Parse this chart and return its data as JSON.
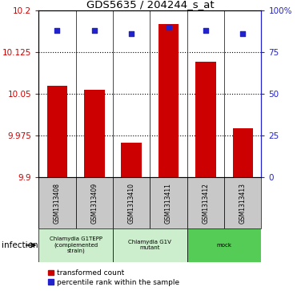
{
  "title": "GDS5635 / 204244_s_at",
  "samples": [
    "GSM1313408",
    "GSM1313409",
    "GSM1313410",
    "GSM1313411",
    "GSM1313412",
    "GSM1313413"
  ],
  "red_values": [
    10.065,
    10.058,
    9.962,
    10.175,
    10.108,
    9.988
  ],
  "blue_values": [
    88,
    88,
    86,
    90,
    88,
    86
  ],
  "ylim_left": [
    9.9,
    10.2
  ],
  "ylim_right": [
    0,
    100
  ],
  "yticks_left": [
    9.9,
    9.975,
    10.05,
    10.125,
    10.2
  ],
  "ytick_labels_left": [
    "9.9",
    "9.975",
    "10.05",
    "10.125",
    "10.2"
  ],
  "yticks_right": [
    0,
    25,
    50,
    75,
    100
  ],
  "ytick_labels_right": [
    "0",
    "25",
    "50",
    "75",
    "100%"
  ],
  "hlines": [
    9.975,
    10.05,
    10.125
  ],
  "groups": [
    {
      "label": "Chlamydia G1TEPP\n(complemented\nstrain)",
      "indices": [
        0,
        1
      ],
      "color": "#cceecc"
    },
    {
      "label": "Chlamydia G1V\nmutant",
      "indices": [
        2,
        3
      ],
      "color": "#cceecc"
    },
    {
      "label": "mock",
      "indices": [
        4,
        5
      ],
      "color": "#55cc55"
    }
  ],
  "bar_color": "#cc0000",
  "dot_color": "#2222cc",
  "bar_bottom": 9.9,
  "sample_box_color": "#c8c8c8"
}
